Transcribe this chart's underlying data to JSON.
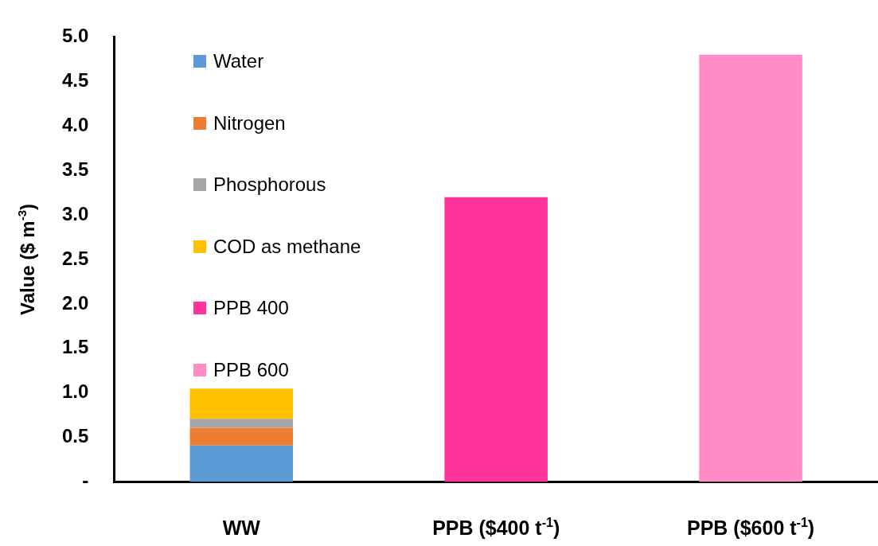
{
  "chart_data": {
    "type": "bar",
    "stacked": true,
    "ylabel": "Value ($ m$^{-3}$)",
    "categories": [
      "WW",
      "PPB ($400 t$^{-1}$)",
      "PPB ($600 t$^{-1}$)"
    ],
    "series": [
      {
        "name": "Water",
        "color": "#5b9bd5",
        "values": [
          0.41,
          null,
          null
        ]
      },
      {
        "name": "Nitrogen",
        "color": "#ed7d31",
        "values": [
          0.2,
          null,
          null
        ]
      },
      {
        "name": "Phosphorous",
        "color": "#a5a5a5",
        "values": [
          0.1,
          null,
          null
        ]
      },
      {
        "name": "COD as methane",
        "color": "#ffc000",
        "values": [
          0.34,
          null,
          null
        ]
      },
      {
        "name": "PPB 400",
        "color": "#ff3399",
        "values": [
          null,
          3.2,
          null
        ]
      },
      {
        "name": "PPB 600",
        "color": "#ff8cc6",
        "values": [
          null,
          null,
          4.8
        ]
      }
    ],
    "ylim": [
      0,
      5
    ],
    "yticks": [
      {
        "value": 0,
        "label": "-"
      },
      {
        "value": 0.5,
        "label": "0.5"
      },
      {
        "value": 1,
        "label": "1.0"
      },
      {
        "value": 1.5,
        "label": "1.5"
      },
      {
        "value": 2,
        "label": "2.0"
      },
      {
        "value": 2.5,
        "label": "2.5"
      },
      {
        "value": 3,
        "label": "3.0"
      },
      {
        "value": 3.5,
        "label": "3.5"
      },
      {
        "value": 4,
        "label": "4.0"
      },
      {
        "value": 4.5,
        "label": "4.5"
      },
      {
        "value": 5,
        "label": "5.0"
      }
    ],
    "grid": false,
    "legend": "top left"
  }
}
